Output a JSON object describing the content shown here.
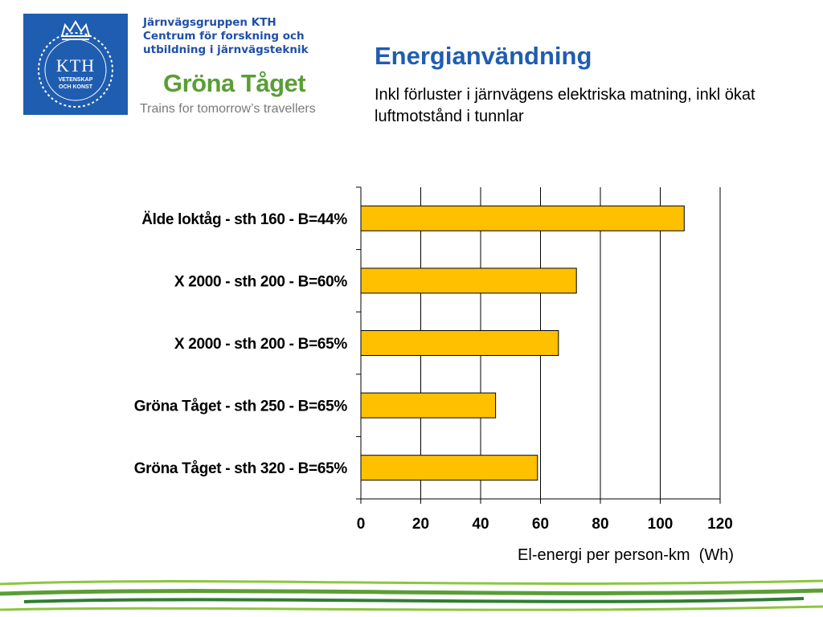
{
  "header": {
    "org_line1": "Järnvägsgruppen KTH",
    "org_line2": "Centrum för forskning och",
    "org_line3": "utbildning i järnvägsteknik",
    "kth_logo_main": "KTH",
    "kth_logo_sub1": "VETENSKAP",
    "kth_logo_sub2": "OCH KONST",
    "gt_title": "Gröna Tåget",
    "gt_tagline": "Trains for tomorrow’s travellers"
  },
  "slide": {
    "title": "Energianvändning",
    "subtitle": "Inkl förluster i järnvägens elektriska matning, inkl  ökat luftmotstånd i tunnlar"
  },
  "colors": {
    "title_blue": "#1f5db0",
    "bar_fill": "#ffc000",
    "green": "#5a9e35"
  },
  "chart_data": {
    "type": "bar",
    "orientation": "horizontal",
    "categories": [
      "Älde loktåg - sth 160 - B=44%",
      "X 2000 - sth 200 - B=60%",
      "X 2000 - sth 200 - B=65%",
      "Gröna Tåget - sth 250 - B=65%",
      "Gröna Tåget - sth 320 - B=65%"
    ],
    "values": [
      108,
      72,
      66,
      45,
      59
    ],
    "xlabel": "El-energi per person-km  (Wh)",
    "ylabel": "",
    "xlim": [
      0,
      120
    ],
    "xticks": [
      0,
      20,
      40,
      60,
      80,
      100,
      120
    ],
    "grid": "vertical",
    "legend": "none"
  }
}
